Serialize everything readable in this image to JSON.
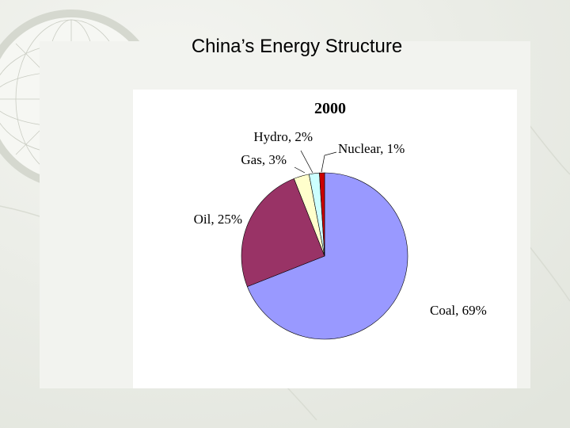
{
  "header": {
    "title": "China’s Energy Structure"
  },
  "chart_data": {
    "type": "pie",
    "title": "2000",
    "values": [
      69,
      25,
      3,
      2,
      1
    ],
    "value_labels": [
      "Coal, 69%",
      "Oil, 25%",
      "Gas, 3%",
      "Hydro, 2%",
      "Nuclear, 1%"
    ],
    "colors": [
      "#9999ff",
      "#993366",
      "#ffffcc",
      "#ccffff",
      "#cc0000"
    ]
  }
}
